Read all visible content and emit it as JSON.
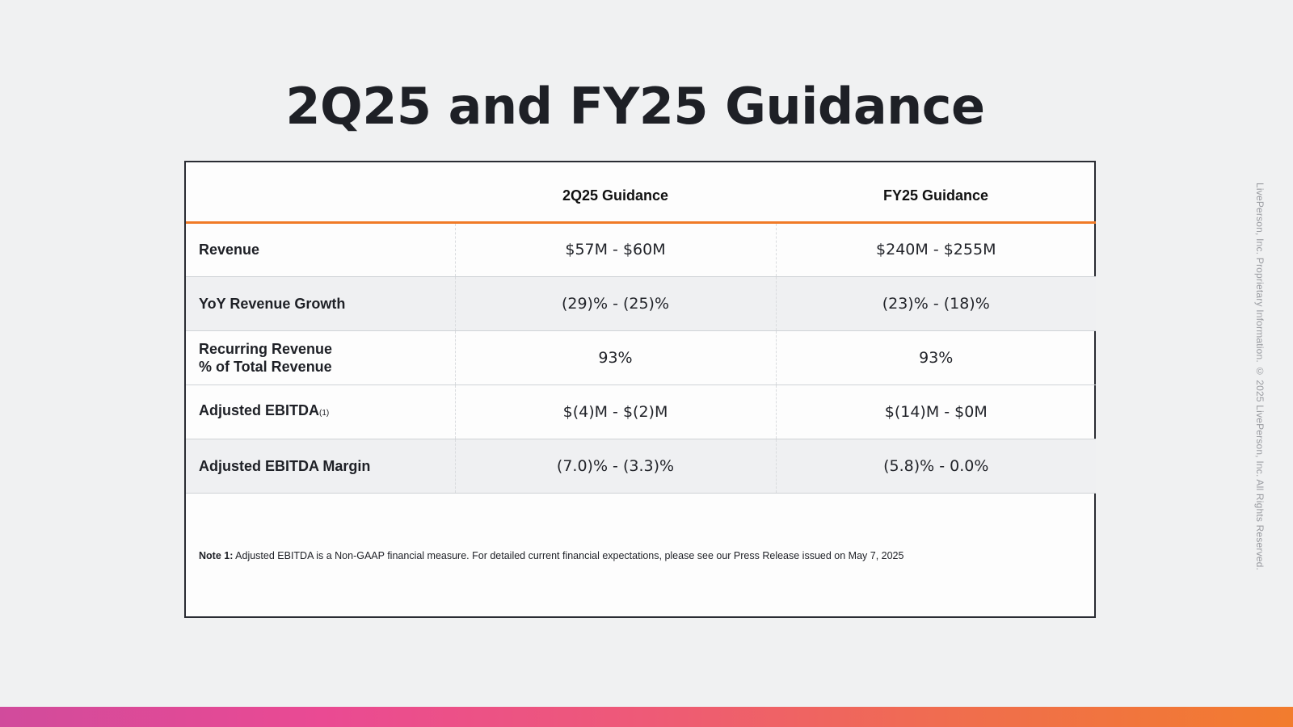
{
  "slide": {
    "title": "2Q25 and FY25 Guidance"
  },
  "table": {
    "headers": [
      "",
      "2Q25 Guidance",
      "FY25 Guidance"
    ],
    "rows": [
      {
        "label": "Revenue",
        "q2": "$57M - $60M",
        "fy": "$240M - $255M"
      },
      {
        "label": "YoY Revenue Growth",
        "q2": "(29)% - (25)%",
        "fy": "(23)% - (18)%"
      },
      {
        "label_line1": "Recurring Revenue",
        "label_line2": "% of Total Revenue",
        "q2": "93%",
        "fy": "93%"
      },
      {
        "label": "Adjusted EBITDA",
        "footnote_marker": "(1)",
        "q2": "$(4)M - $(2)M",
        "fy": "$(14)M - $0M"
      },
      {
        "label": "Adjusted EBITDA Margin",
        "q2": "(7.0)% - (3.3)%",
        "fy": "(5.8)% - 0.0%"
      }
    ]
  },
  "note": {
    "prefix": "Note 1:",
    "text": " Adjusted EBITDA is a Non-GAAP financial measure. For detailed current financial expectations, please see our Press Release issued on May 7, 2025"
  },
  "copyright": "LivePerson, Inc. Proprietary Information. © 2025 LivePerson, Inc. All Rights Reserved.",
  "colors": {
    "accent_orange": "#f07a26",
    "gradient_start": "#d14b9c",
    "gradient_end": "#f27c2e",
    "background": "#f0f1f2"
  }
}
